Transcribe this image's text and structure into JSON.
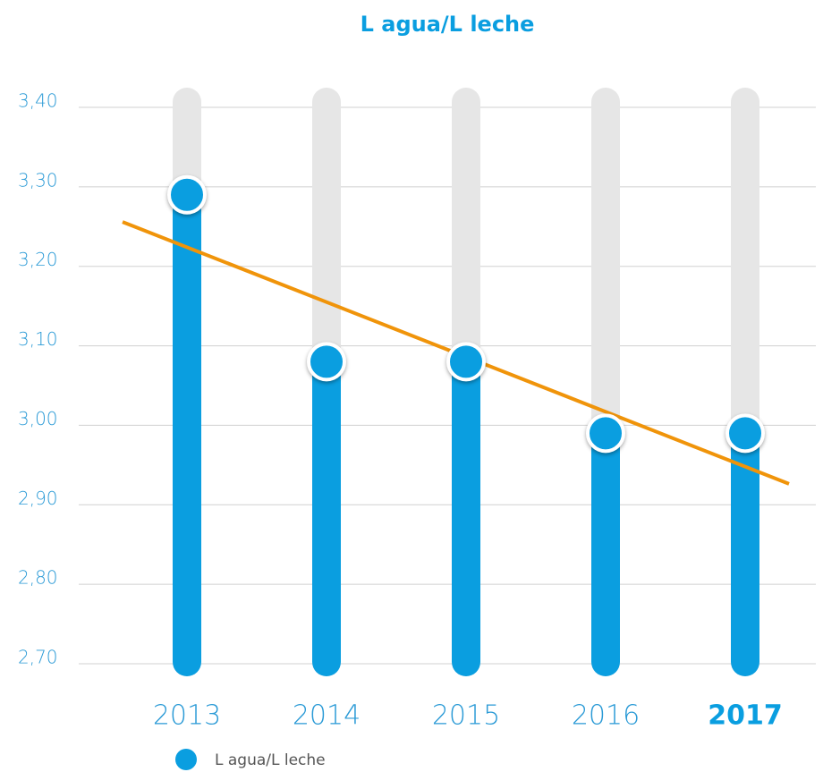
{
  "chart_data": {
    "type": "lollipop",
    "title": "L agua/L leche",
    "categories": [
      "2013",
      "2014",
      "2015",
      "2016",
      "2017"
    ],
    "series": [
      {
        "name": "L agua/L leche",
        "color": "#0a9ee0",
        "values": [
          3.29,
          3.08,
          3.08,
          2.99,
          2.99
        ]
      }
    ],
    "ylim": [
      2.7,
      3.4
    ],
    "yticks": [
      {
        "value": 2.7,
        "label": "2,70"
      },
      {
        "value": 2.8,
        "label": "2,80"
      },
      {
        "value": 2.9,
        "label": "2,90"
      },
      {
        "value": 3.0,
        "label": "3,00"
      },
      {
        "value": 3.1,
        "label": "3,10"
      },
      {
        "value": 3.2,
        "label": "3,20"
      },
      {
        "value": 3.3,
        "label": "3,30"
      },
      {
        "value": 3.4,
        "label": "3,40"
      }
    ],
    "grid": true,
    "track_color": "#e6e6e6",
    "trendline": true,
    "trendline_color": "#f0940a",
    "highlight_index": 4,
    "legend": "bottom-left"
  }
}
